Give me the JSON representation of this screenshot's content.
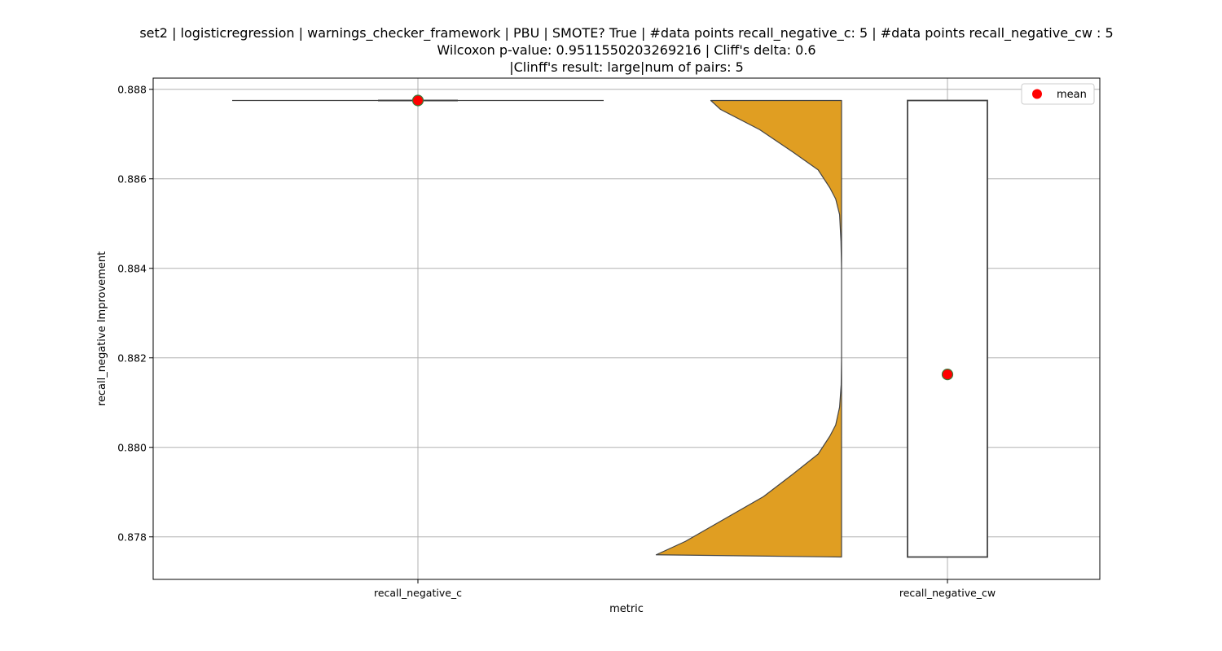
{
  "chart_data": {
    "type": "violin",
    "title_lines": [
      "set2 | logisticregression | warnings_checker_framework | PBU | SMOTE? True | #data points recall_negative_c: 5 | #data points recall_negative_cw : 5",
      "Wilcoxon p-value: 0.9511550203269216 | Cliff's delta: 0.6",
      "|Clinff's result: large|num of pairs: 5"
    ],
    "xlabel": "metric",
    "ylabel": "recall_negative Improvement",
    "categories": [
      "recall_negative_c",
      "recall_negative_cw"
    ],
    "ylim": [
      0.87705,
      0.88825
    ],
    "yticks": [
      0.878,
      0.88,
      0.882,
      0.884,
      0.886,
      0.888
    ],
    "ytick_labels": [
      "0.878",
      "0.880",
      "0.882",
      "0.884",
      "0.886",
      "0.888"
    ],
    "grid": true,
    "legend": {
      "position": "top-right",
      "label": "mean"
    },
    "colors": {
      "violin_fill": "#e09e22",
      "violin_edge": "#444444",
      "mean_marker": "#ff0000",
      "mean_edge": "#3a7a3a",
      "grid": "#b0b0b0"
    },
    "series": [
      {
        "category": "recall_negative_c",
        "min": 0.88775,
        "max": 0.88775,
        "q1": 0.88775,
        "q3": 0.88775,
        "mean": 0.88775
      },
      {
        "category": "recall_negative_cw",
        "min": 0.87755,
        "max": 0.88775,
        "q1": 0.87755,
        "q3": 0.88775,
        "mean": 0.88163,
        "density_profile": [
          [
            0.87755,
            0.0
          ],
          [
            0.8776,
            0.95
          ],
          [
            0.8779,
            0.8
          ],
          [
            0.8784,
            0.6
          ],
          [
            0.8789,
            0.4
          ],
          [
            0.8794,
            0.25
          ],
          [
            0.87985,
            0.12
          ],
          [
            0.88025,
            0.06
          ],
          [
            0.8805,
            0.03
          ],
          [
            0.8809,
            0.01
          ],
          [
            0.8814,
            0.002
          ],
          [
            0.882,
            0.0
          ],
          [
            0.884,
            0.0
          ],
          [
            0.8846,
            0.003
          ],
          [
            0.8852,
            0.01
          ],
          [
            0.88555,
            0.03
          ],
          [
            0.8858,
            0.06
          ],
          [
            0.8862,
            0.12
          ],
          [
            0.8866,
            0.25
          ],
          [
            0.8871,
            0.42
          ],
          [
            0.88755,
            0.62
          ],
          [
            0.88775,
            0.67
          ]
        ]
      }
    ]
  }
}
